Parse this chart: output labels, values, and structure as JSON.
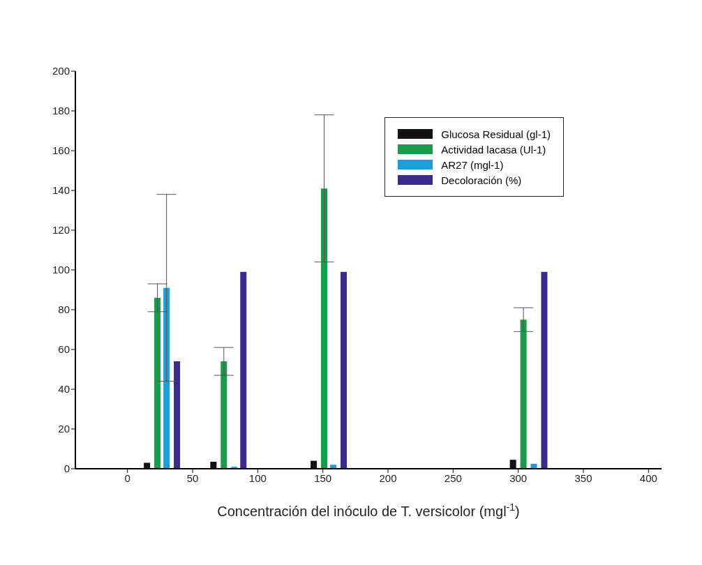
{
  "chart_data": {
    "type": "bar",
    "xlabel": "Concentración del inóculo de T. versicolor (mgl$^{-1}$)",
    "xlim": [
      -40,
      410
    ],
    "xticks": [
      0,
      50,
      100,
      150,
      200,
      250,
      300,
      350,
      400
    ],
    "ylim": [
      0,
      200
    ],
    "yticks": [
      0,
      20,
      40,
      60,
      80,
      100,
      120,
      140,
      160,
      180,
      200
    ],
    "legend": "top right",
    "series": [
      {
        "name": "Glucosa Residual (gl-1)",
        "color": "#111111",
        "x": [
          15,
          66,
          143,
          296
        ],
        "values": [
          3,
          3.5,
          4,
          4.5
        ]
      },
      {
        "name": "Actividad lacasa (Ul-1)",
        "color": "#1a9a4a",
        "x": [
          23,
          74,
          151,
          304
        ],
        "values": [
          86,
          54,
          141,
          75
        ],
        "errors": [
          7,
          7,
          37,
          6
        ]
      },
      {
        "name": "AR27 (mgl-1)",
        "color": "#1aa0d8",
        "x": [
          30,
          82,
          158,
          312
        ],
        "values": [
          91,
          1,
          2,
          2.5
        ],
        "errors": [
          47,
          null,
          null,
          null
        ]
      },
      {
        "name": "Decoloración (%)",
        "color": "#3a2a8a",
        "x": [
          38,
          89,
          166,
          320
        ],
        "values": [
          54,
          99,
          99,
          99
        ]
      }
    ]
  }
}
